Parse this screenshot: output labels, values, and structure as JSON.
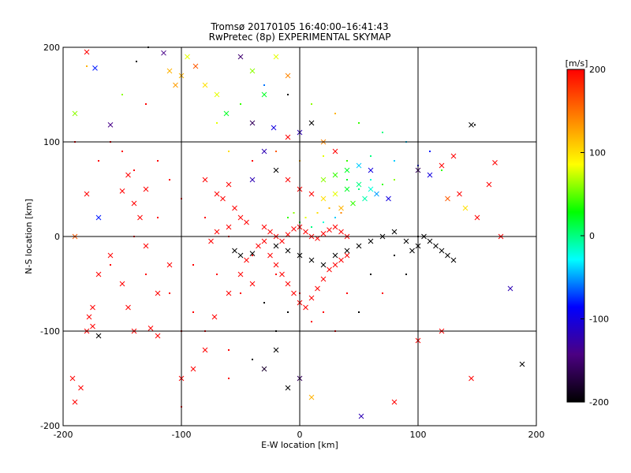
{
  "chart_data": {
    "type": "scatter",
    "title": "Tromsø 20170105 16:40:00–16:41:43",
    "subtitle": "RwPretec (8p) EXPERIMENTAL SKYMAP",
    "xlabel": "E-W location [km]",
    "ylabel": "N-S location [km]",
    "xlim": [
      -200,
      200
    ],
    "ylim": [
      -200,
      200
    ],
    "xticks": [
      "-200",
      "-100",
      "0",
      "100",
      "200"
    ],
    "yticks": [
      "-200",
      "-100",
      "0",
      "100",
      "200"
    ],
    "grid": true,
    "colorbar": {
      "label": "[m/s]",
      "range": [
        -200,
        200
      ],
      "ticks": [
        "200",
        "100",
        "0",
        "-100",
        "-200"
      ],
      "colormap": [
        "#000000",
        "#4b0082",
        "#0000ff",
        "#00ffff",
        "#00ff00",
        "#ffff00",
        "#ff8000",
        "#ff0000"
      ]
    },
    "marker_legend": {
      "small": "dot",
      "large": "x"
    },
    "points": [
      [
        -173,
        178,
        "x",
        -80
      ],
      [
        -180,
        195,
        "x",
        200
      ],
      [
        -190,
        130,
        "x",
        60
      ],
      [
        -160,
        118,
        "x",
        -140
      ],
      [
        -138,
        185,
        "d",
        -200
      ],
      [
        -128,
        200,
        "d",
        -200
      ],
      [
        -115,
        194,
        "x",
        -140
      ],
      [
        -110,
        175,
        "x",
        120
      ],
      [
        -105,
        160,
        "x",
        130
      ],
      [
        -100,
        170,
        "x",
        120
      ],
      [
        -95,
        190,
        "x",
        80
      ],
      [
        -88,
        180,
        "x",
        160
      ],
      [
        -80,
        160,
        "x",
        100
      ],
      [
        -70,
        150,
        "x",
        80
      ],
      [
        -62,
        130,
        "x",
        20
      ],
      [
        -50,
        190,
        "x",
        -150
      ],
      [
        -40,
        175,
        "x",
        60
      ],
      [
        -30,
        150,
        "x",
        20
      ],
      [
        -20,
        190,
        "x",
        80
      ],
      [
        -10,
        170,
        "x",
        140
      ],
      [
        -40,
        120,
        "x",
        -160
      ],
      [
        -22,
        115,
        "x",
        -100
      ],
      [
        -10,
        105,
        "x",
        200
      ],
      [
        -180,
        45,
        "x",
        200
      ],
      [
        -170,
        20,
        "x",
        -80
      ],
      [
        -150,
        48,
        "x",
        200
      ],
      [
        -145,
        65,
        "x",
        200
      ],
      [
        -140,
        35,
        "x",
        200
      ],
      [
        -135,
        20,
        "x",
        200
      ],
      [
        -130,
        50,
        "x",
        200
      ],
      [
        -190,
        0,
        "x",
        160
      ],
      [
        -170,
        -40,
        "x",
        200
      ],
      [
        -160,
        -20,
        "x",
        200
      ],
      [
        -150,
        -50,
        "x",
        200
      ],
      [
        -175,
        -75,
        "x",
        200
      ],
      [
        -178,
        -85,
        "x",
        200
      ],
      [
        -140,
        -100,
        "x",
        200
      ],
      [
        -175,
        -95,
        "x",
        200
      ],
      [
        -180,
        -100,
        "x",
        200
      ],
      [
        -145,
        -75,
        "x",
        200
      ],
      [
        -126,
        -97,
        "x",
        200
      ],
      [
        -170,
        -105,
        "x",
        -200
      ],
      [
        -185,
        -160,
        "x",
        200
      ],
      [
        -190,
        -175,
        "x",
        200
      ],
      [
        -192,
        -150,
        "x",
        200
      ],
      [
        -120,
        -60,
        "x",
        200
      ],
      [
        -110,
        -30,
        "x",
        200
      ],
      [
        -130,
        -10,
        "x",
        200
      ],
      [
        -100,
        -150,
        "x",
        200
      ],
      [
        -90,
        -140,
        "x",
        200
      ],
      [
        -80,
        -120,
        "x",
        200
      ],
      [
        -72,
        -85,
        "x",
        200
      ],
      [
        -60,
        -60,
        "x",
        200
      ],
      [
        -50,
        -40,
        "x",
        200
      ],
      [
        -40,
        -50,
        "x",
        200
      ],
      [
        -30,
        -140,
        "x",
        -180
      ],
      [
        -20,
        -120,
        "x",
        -200
      ],
      [
        -10,
        -160,
        "x",
        -200
      ],
      [
        0,
        -150,
        "x",
        -160
      ],
      [
        10,
        -170,
        "x",
        120
      ],
      [
        52,
        -190,
        "x",
        -120
      ],
      [
        80,
        -175,
        "x",
        200
      ],
      [
        100,
        -110,
        "x",
        200
      ],
      [
        120,
        -100,
        "x",
        200
      ],
      [
        145,
        -150,
        "x",
        200
      ],
      [
        188,
        -135,
        "x",
        -200
      ],
      [
        145,
        118,
        "x",
        -200
      ],
      [
        148,
        118,
        "d",
        -200
      ],
      [
        165,
        78,
        "x",
        200
      ],
      [
        160,
        55,
        "x",
        200
      ],
      [
        130,
        85,
        "x",
        200
      ],
      [
        120,
        75,
        "x",
        200
      ],
      [
        100,
        70,
        "x",
        -160
      ],
      [
        110,
        65,
        "x",
        -100
      ],
      [
        125,
        40,
        "x",
        160
      ],
      [
        135,
        45,
        "x",
        200
      ],
      [
        140,
        30,
        "x",
        100
      ],
      [
        150,
        20,
        "x",
        200
      ],
      [
        178,
        -55,
        "x",
        -120
      ],
      [
        170,
        0,
        "x",
        200
      ],
      [
        -120,
        -105,
        "x",
        200
      ],
      [
        -100,
        -180,
        "d",
        200
      ],
      [
        -60,
        -150,
        "d",
        200
      ],
      [
        -40,
        -130,
        "d",
        -200
      ],
      [
        -20,
        -100,
        "d",
        -200
      ],
      [
        -80,
        60,
        "x",
        200
      ],
      [
        -70,
        45,
        "x",
        200
      ],
      [
        -65,
        40,
        "x",
        200
      ],
      [
        -60,
        55,
        "x",
        200
      ],
      [
        -55,
        30,
        "x",
        200
      ],
      [
        -50,
        20,
        "x",
        200
      ],
      [
        -45,
        15,
        "x",
        200
      ],
      [
        -60,
        10,
        "x",
        200
      ],
      [
        -70,
        5,
        "x",
        200
      ],
      [
        -75,
        -5,
        "x",
        200
      ],
      [
        -55,
        -15,
        "x",
        -200
      ],
      [
        -50,
        -20,
        "x",
        -200
      ],
      [
        -45,
        -25,
        "x",
        200
      ],
      [
        -40,
        -18,
        "x",
        -200
      ],
      [
        -35,
        -10,
        "x",
        200
      ],
      [
        -30,
        -5,
        "x",
        200
      ],
      [
        -25,
        -20,
        "x",
        200
      ],
      [
        -20,
        -30,
        "x",
        200
      ],
      [
        -15,
        -40,
        "x",
        200
      ],
      [
        -10,
        -50,
        "x",
        200
      ],
      [
        -5,
        -60,
        "x",
        200
      ],
      [
        0,
        -70,
        "x",
        200
      ],
      [
        5,
        -75,
        "x",
        200
      ],
      [
        10,
        -65,
        "x",
        200
      ],
      [
        15,
        -55,
        "x",
        200
      ],
      [
        20,
        -45,
        "x",
        200
      ],
      [
        25,
        -35,
        "x",
        200
      ],
      [
        30,
        -30,
        "x",
        200
      ],
      [
        35,
        -25,
        "x",
        200
      ],
      [
        40,
        -20,
        "x",
        200
      ],
      [
        -30,
        10,
        "x",
        200
      ],
      [
        -25,
        5,
        "x",
        200
      ],
      [
        -20,
        0,
        "x",
        200
      ],
      [
        -15,
        -5,
        "x",
        200
      ],
      [
        -10,
        2,
        "x",
        200
      ],
      [
        -5,
        8,
        "x",
        200
      ],
      [
        0,
        10,
        "x",
        200
      ],
      [
        5,
        5,
        "x",
        200
      ],
      [
        10,
        0,
        "x",
        200
      ],
      [
        15,
        -2,
        "x",
        200
      ],
      [
        20,
        3,
        "x",
        200
      ],
      [
        25,
        7,
        "x",
        200
      ],
      [
        30,
        10,
        "x",
        200
      ],
      [
        35,
        5,
        "x",
        200
      ],
      [
        40,
        0,
        "x",
        200
      ],
      [
        -20,
        -10,
        "x",
        -200
      ],
      [
        -10,
        -15,
        "x",
        -200
      ],
      [
        0,
        -20,
        "x",
        -200
      ],
      [
        10,
        -25,
        "x",
        -200
      ],
      [
        20,
        -30,
        "x",
        -200
      ],
      [
        30,
        -20,
        "x",
        -200
      ],
      [
        40,
        -15,
        "x",
        -200
      ],
      [
        50,
        -10,
        "x",
        -200
      ],
      [
        60,
        -5,
        "x",
        -200
      ],
      [
        70,
        0,
        "x",
        -200
      ],
      [
        80,
        5,
        "x",
        -200
      ],
      [
        90,
        -5,
        "x",
        -200
      ],
      [
        95,
        -15,
        "x",
        -200
      ],
      [
        100,
        -10,
        "x",
        -200
      ],
      [
        110,
        -5,
        "x",
        -200
      ],
      [
        120,
        -15,
        "x",
        -200
      ],
      [
        130,
        -25,
        "x",
        -200
      ],
      [
        105,
        0,
        "x",
        -200
      ],
      [
        115,
        -10,
        "x",
        -200
      ],
      [
        125,
        -20,
        "x",
        -200
      ],
      [
        20,
        40,
        "x",
        100
      ],
      [
        30,
        45,
        "x",
        80
      ],
      [
        40,
        50,
        "x",
        20
      ],
      [
        50,
        55,
        "x",
        0
      ],
      [
        60,
        50,
        "x",
        -20
      ],
      [
        35,
        30,
        "x",
        120
      ],
      [
        45,
        35,
        "x",
        40
      ],
      [
        55,
        40,
        "x",
        -10
      ],
      [
        65,
        45,
        "x",
        -50
      ],
      [
        75,
        40,
        "x",
        -100
      ],
      [
        20,
        60,
        "x",
        60
      ],
      [
        30,
        65,
        "x",
        40
      ],
      [
        40,
        70,
        "x",
        20
      ],
      [
        50,
        75,
        "x",
        -40
      ],
      [
        60,
        70,
        "x",
        -100
      ],
      [
        10,
        120,
        "x",
        -200
      ],
      [
        0,
        110,
        "x",
        -120
      ],
      [
        20,
        100,
        "x",
        140
      ],
      [
        30,
        90,
        "x",
        200
      ],
      [
        -30,
        90,
        "x",
        -120
      ],
      [
        -40,
        60,
        "x",
        -120
      ],
      [
        -20,
        70,
        "x",
        -200
      ],
      [
        -10,
        60,
        "x",
        200
      ],
      [
        0,
        50,
        "x",
        200
      ],
      [
        10,
        45,
        "x",
        200
      ],
      [
        -180,
        180,
        "d",
        120
      ],
      [
        -150,
        150,
        "d",
        60
      ],
      [
        -130,
        140,
        "d",
        200
      ],
      [
        -160,
        100,
        "d",
        200
      ],
      [
        -190,
        100,
        "d",
        200
      ],
      [
        -170,
        80,
        "d",
        200
      ],
      [
        -150,
        90,
        "d",
        200
      ],
      [
        -140,
        70,
        "d",
        200
      ],
      [
        -120,
        80,
        "d",
        200
      ],
      [
        -110,
        60,
        "d",
        200
      ],
      [
        -100,
        40,
        "d",
        200
      ],
      [
        -120,
        20,
        "d",
        200
      ],
      [
        -140,
        0,
        "d",
        200
      ],
      [
        -160,
        -30,
        "d",
        200
      ],
      [
        -130,
        -40,
        "d",
        200
      ],
      [
        -110,
        -60,
        "d",
        200
      ],
      [
        -90,
        -80,
        "d",
        200
      ],
      [
        -100,
        -100,
        "d",
        200
      ],
      [
        -80,
        -100,
        "d",
        200
      ],
      [
        -60,
        -120,
        "d",
        200
      ],
      [
        -70,
        120,
        "d",
        80
      ],
      [
        -50,
        140,
        "d",
        40
      ],
      [
        -30,
        160,
        "d",
        -60
      ],
      [
        -10,
        150,
        "d",
        -200
      ],
      [
        10,
        140,
        "d",
        60
      ],
      [
        30,
        130,
        "d",
        120
      ],
      [
        50,
        120,
        "d",
        40
      ],
      [
        70,
        110,
        "d",
        0
      ],
      [
        90,
        100,
        "d",
        -40
      ],
      [
        110,
        90,
        "d",
        -80
      ],
      [
        -60,
        90,
        "d",
        100
      ],
      [
        -40,
        80,
        "d",
        200
      ],
      [
        -20,
        90,
        "d",
        160
      ],
      [
        0,
        80,
        "d",
        120
      ],
      [
        20,
        85,
        "d",
        80
      ],
      [
        40,
        80,
        "d",
        40
      ],
      [
        60,
        85,
        "d",
        0
      ],
      [
        80,
        80,
        "d",
        -40
      ],
      [
        100,
        75,
        "d",
        -80
      ],
      [
        120,
        70,
        "d",
        40
      ],
      [
        -80,
        20,
        "d",
        200
      ],
      [
        -60,
        0,
        "d",
        200
      ],
      [
        -40,
        -20,
        "d",
        200
      ],
      [
        -20,
        -40,
        "d",
        200
      ],
      [
        0,
        -60,
        "d",
        200
      ],
      [
        20,
        -80,
        "d",
        200
      ],
      [
        40,
        -60,
        "d",
        200
      ],
      [
        60,
        -40,
        "d",
        -200
      ],
      [
        80,
        -20,
        "d",
        -200
      ],
      [
        100,
        0,
        "d",
        -200
      ],
      [
        -10,
        20,
        "d",
        40
      ],
      [
        0,
        15,
        "d",
        20
      ],
      [
        10,
        10,
        "d",
        0
      ],
      [
        20,
        15,
        "d",
        -20
      ],
      [
        30,
        20,
        "d",
        -40
      ],
      [
        -5,
        25,
        "d",
        60
      ],
      [
        5,
        20,
        "d",
        80
      ],
      [
        15,
        25,
        "d",
        100
      ],
      [
        25,
        30,
        "d",
        120
      ],
      [
        35,
        25,
        "d",
        140
      ],
      [
        40,
        60,
        "d",
        20
      ],
      [
        50,
        50,
        "d",
        0
      ],
      [
        60,
        60,
        "d",
        -20
      ],
      [
        70,
        55,
        "d",
        40
      ],
      [
        80,
        60,
        "d",
        60
      ],
      [
        -90,
        -30,
        "d",
        200
      ],
      [
        -70,
        -40,
        "d",
        200
      ],
      [
        -50,
        -60,
        "d",
        200
      ],
      [
        -30,
        -70,
        "d",
        -200
      ],
      [
        -10,
        -80,
        "d",
        -200
      ],
      [
        10,
        -90,
        "d",
        200
      ],
      [
        30,
        -100,
        "d",
        200
      ],
      [
        50,
        -80,
        "d",
        -200
      ],
      [
        70,
        -60,
        "d",
        200
      ],
      [
        90,
        -40,
        "d",
        -200
      ]
    ]
  }
}
